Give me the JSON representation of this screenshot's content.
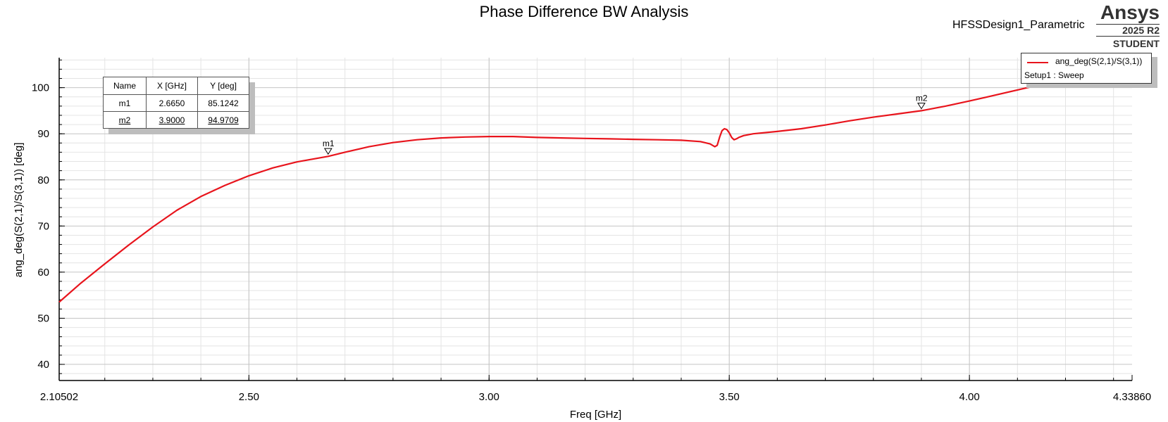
{
  "title": "Phase Difference BW Analysis",
  "design_name": "HFSSDesign1_Parametric",
  "brand": {
    "name": "Ansys",
    "version": "2025 R2",
    "edition": "STUDENT"
  },
  "legend": {
    "series_name": "ang_deg(S(2,1)/S(3,1))",
    "setup": "Setup1 : Sweep",
    "color": "#e8141c"
  },
  "marker_table": {
    "headers": [
      "Name",
      "X [GHz]",
      "Y [deg]"
    ],
    "rows": [
      [
        "m1",
        "2.6650",
        "85.1242"
      ],
      [
        "m2",
        "3.9000",
        "94.9709"
      ]
    ]
  },
  "chart_data": {
    "type": "line",
    "title": "Phase Difference BW Analysis",
    "xlabel": "Freq [GHz]",
    "ylabel": "ang_deg(S(2,1)/S(3,1)) [deg]",
    "xlim": [
      2.10502,
      4.3386
    ],
    "ylim": [
      36.5,
      106.5
    ],
    "x_tick_labels": [
      "2.10502",
      "2.50",
      "3.00",
      "3.50",
      "4.00",
      "4.33860"
    ],
    "x_tick_values": [
      2.10502,
      2.5,
      3.0,
      3.5,
      4.0,
      4.3386
    ],
    "y_tick_values": [
      40,
      50,
      60,
      70,
      80,
      90,
      100
    ],
    "y_tick_labels": [
      "40",
      "50",
      "60",
      "70",
      "80",
      "90",
      "100"
    ],
    "grid": true,
    "legend_position": "top-right",
    "series": [
      {
        "name": "ang_deg(S(2,1)/S(3,1))",
        "color": "#e8141c",
        "x": [
          2.105,
          2.15,
          2.2,
          2.25,
          2.3,
          2.35,
          2.4,
          2.45,
          2.5,
          2.55,
          2.6,
          2.665,
          2.7,
          2.75,
          2.8,
          2.85,
          2.9,
          2.95,
          3.0,
          3.05,
          3.1,
          3.15,
          3.2,
          3.25,
          3.3,
          3.35,
          3.4,
          3.44,
          3.46,
          3.47,
          3.475,
          3.48,
          3.485,
          3.49,
          3.495,
          3.5,
          3.505,
          3.51,
          3.515,
          3.52,
          3.53,
          3.55,
          3.6,
          3.65,
          3.7,
          3.75,
          3.8,
          3.85,
          3.9,
          3.95,
          4.0,
          4.05,
          4.1,
          4.15,
          4.2,
          4.25,
          4.3,
          4.3386
        ],
        "y": [
          53.5,
          57.6,
          61.8,
          65.9,
          69.8,
          73.4,
          76.4,
          78.8,
          80.9,
          82.6,
          83.9,
          85.1,
          86.0,
          87.2,
          88.1,
          88.7,
          89.1,
          89.3,
          89.4,
          89.4,
          89.2,
          89.1,
          89.0,
          88.9,
          88.8,
          88.7,
          88.6,
          88.3,
          87.8,
          87.2,
          87.5,
          89.3,
          90.7,
          91.1,
          90.9,
          90.2,
          89.2,
          88.7,
          88.9,
          89.2,
          89.6,
          90.0,
          90.5,
          91.1,
          91.9,
          92.8,
          93.6,
          94.3,
          95.0,
          96.0,
          97.1,
          98.3,
          99.5,
          100.7,
          101.9,
          103.1,
          104.3,
          105.1
        ]
      }
    ],
    "markers": [
      {
        "name": "m1",
        "x": 2.665,
        "y": 85.1242
      },
      {
        "name": "m2",
        "x": 3.9,
        "y": 94.9709
      }
    ]
  }
}
